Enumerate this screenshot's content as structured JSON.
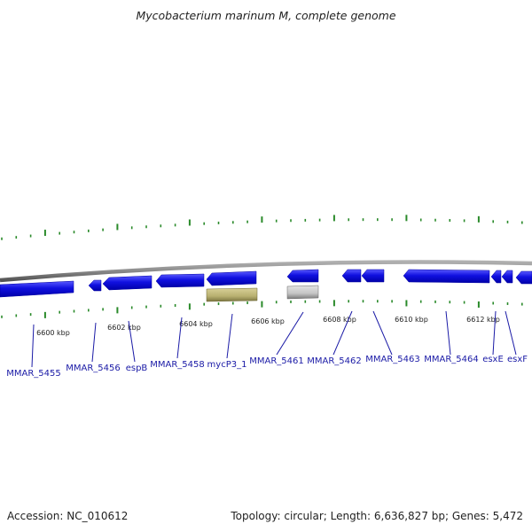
{
  "title": "Mycobacterium marinum M, complete genome",
  "scale": {
    "kbp_labels": [
      "6600 kbp",
      "6602 kbp",
      "6604 kbp",
      "6606 kbp",
      "6608 kbp",
      "6610 kbp",
      "6612 kbp"
    ]
  },
  "genes": [
    {
      "label": "MMAR_5455",
      "type": "CDS",
      "strand": "reverse"
    },
    {
      "label": "MMAR_5456",
      "type": "CDS",
      "strand": "reverse"
    },
    {
      "label": "espB",
      "type": "CDS",
      "strand": "reverse"
    },
    {
      "label": "MMAR_5458",
      "type": "CDS",
      "strand": "reverse"
    },
    {
      "label": "mycP3_1",
      "type": "pseudo",
      "strand": "forward"
    },
    {
      "label": "MMAR_5461",
      "type": "other",
      "strand": "forward"
    },
    {
      "label": "MMAR_5462",
      "type": "CDS",
      "strand": "reverse"
    },
    {
      "label": "MMAR_5463",
      "type": "CDS",
      "strand": "reverse"
    },
    {
      "label": "MMAR_5464",
      "type": "CDS",
      "strand": "reverse"
    },
    {
      "label": "esxE",
      "type": "CDS",
      "strand": "reverse"
    },
    {
      "label": "esxF",
      "type": "CDS",
      "strand": "reverse"
    }
  ],
  "colors": {
    "cds": "#1010e0",
    "pseudo": "#b8b070",
    "other": "#c0c0c0",
    "backbone": "#8a8a8a",
    "ticks": "#2a8a2a",
    "label_line": "#1a1aa6"
  },
  "footer": {
    "accession": "Accession: NC_010612",
    "summary": "Topology: circular; Length: 6,636,827 bp; Genes: 5,472"
  }
}
